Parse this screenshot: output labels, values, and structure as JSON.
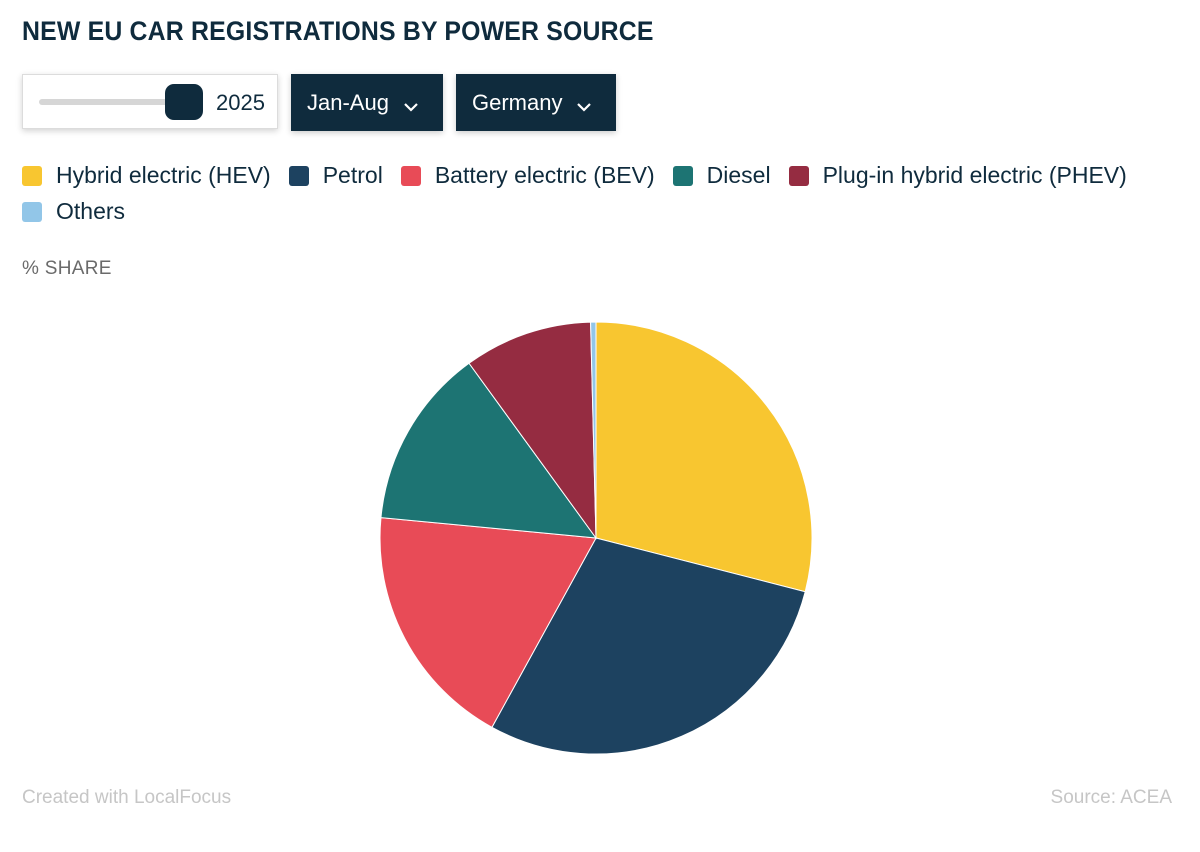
{
  "title": "NEW EU CAR REGISTRATIONS BY POWER SOURCE",
  "controls": {
    "year_value": "2025",
    "year_fraction": 1.0,
    "period": "Jan-Aug",
    "country": "Germany"
  },
  "axis_note": "% SHARE",
  "footer": {
    "credit": "Created with LocalFocus",
    "source": "Source:  ACEA"
  },
  "chart_data": {
    "type": "pie",
    "slices": [
      {
        "name": "Hybrid electric (HEV)",
        "value": 29.0,
        "color": "#f8c630"
      },
      {
        "name": "Petrol",
        "value": 29.0,
        "color": "#1d4260"
      },
      {
        "name": "Battery electric (BEV)",
        "value": 18.5,
        "color": "#e84b57"
      },
      {
        "name": "Diesel",
        "value": 13.5,
        "color": "#1d7473"
      },
      {
        "name": "Plug-in hybrid electric (PHEV)",
        "value": 9.6,
        "color": "#952c41"
      },
      {
        "name": "Others",
        "value": 0.4,
        "color": "#92c6e8"
      }
    ],
    "legend_position": "top"
  }
}
